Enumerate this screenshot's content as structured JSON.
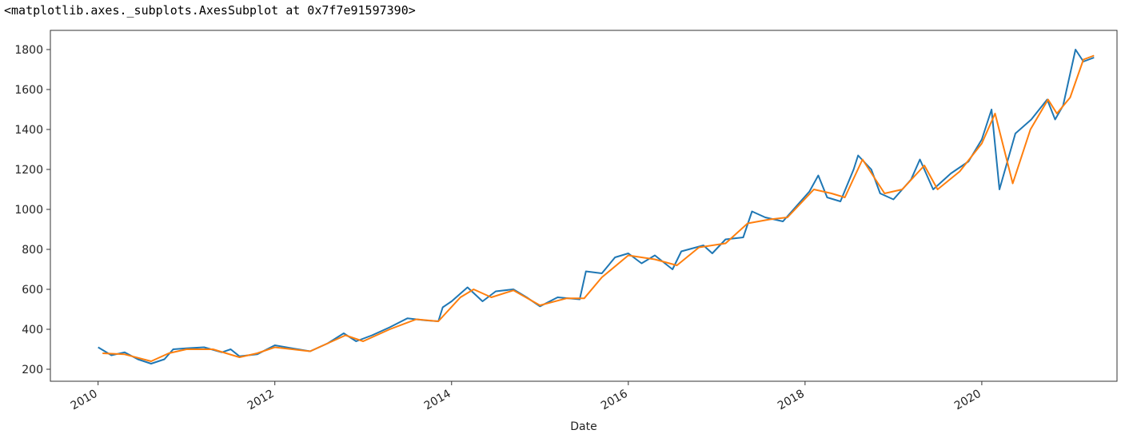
{
  "output_repr": "<matplotlib.axes._subplots.AxesSubplot at 0x7f7e91597390>",
  "chart_data": {
    "type": "line",
    "xlabel": "Date",
    "grid": false,
    "xlim": [
      2009.46,
      2021.53
    ],
    "ylim": [
      140,
      1896
    ],
    "xticks": [
      2010,
      2012,
      2014,
      2016,
      2018,
      2020
    ],
    "yticks": [
      200,
      400,
      600,
      800,
      1000,
      1200,
      1400,
      1600,
      1800
    ],
    "series": [
      {
        "color": "#1f77b4",
        "x": [
          2010.0,
          2010.15,
          2010.3,
          2010.45,
          2010.6,
          2010.75,
          2010.85,
          2011.0,
          2011.2,
          2011.4,
          2011.5,
          2011.6,
          2011.8,
          2012.0,
          2012.2,
          2012.4,
          2012.6,
          2012.78,
          2012.92,
          2013.1,
          2013.3,
          2013.5,
          2013.7,
          2013.85,
          2013.9,
          2014.0,
          2014.18,
          2014.35,
          2014.5,
          2014.7,
          2014.85,
          2015.0,
          2015.2,
          2015.45,
          2015.52,
          2015.7,
          2015.85,
          2016.0,
          2016.15,
          2016.3,
          2016.5,
          2016.6,
          2016.85,
          2016.95,
          2017.1,
          2017.3,
          2017.4,
          2017.55,
          2017.75,
          2017.95,
          2018.05,
          2018.15,
          2018.25,
          2018.4,
          2018.55,
          2018.6,
          2018.75,
          2018.85,
          2019.0,
          2019.2,
          2019.3,
          2019.45,
          2019.65,
          2019.85,
          2020.0,
          2020.11,
          2020.2,
          2020.38,
          2020.56,
          2020.65,
          2020.74,
          2020.83,
          2020.92,
          2021.06,
          2021.15,
          2021.27
        ],
        "values": [
          310,
          270,
          285,
          250,
          228,
          250,
          300,
          305,
          310,
          285,
          300,
          265,
          275,
          320,
          305,
          290,
          330,
          380,
          340,
          370,
          410,
          455,
          445,
          440,
          510,
          540,
          610,
          540,
          590,
          600,
          560,
          515,
          560,
          550,
          690,
          680,
          760,
          780,
          730,
          770,
          700,
          790,
          820,
          780,
          850,
          860,
          990,
          960,
          940,
          1040,
          1090,
          1170,
          1060,
          1040,
          1200,
          1270,
          1200,
          1080,
          1050,
          1150,
          1250,
          1100,
          1180,
          1240,
          1350,
          1500,
          1100,
          1380,
          1450,
          1500,
          1550,
          1450,
          1520,
          1800,
          1740,
          1760
        ]
      },
      {
        "color": "#ff7f0e",
        "x": [
          2010.05,
          2010.3,
          2010.6,
          2010.8,
          2011.0,
          2011.3,
          2011.6,
          2011.8,
          2012.0,
          2012.4,
          2012.8,
          2013.0,
          2013.3,
          2013.6,
          2013.85,
          2014.1,
          2014.25,
          2014.45,
          2014.7,
          2015.0,
          2015.3,
          2015.5,
          2015.7,
          2016.0,
          2016.3,
          2016.55,
          2016.8,
          2017.1,
          2017.35,
          2017.6,
          2017.8,
          2018.1,
          2018.3,
          2018.45,
          2018.65,
          2018.9,
          2019.1,
          2019.35,
          2019.5,
          2019.75,
          2020.0,
          2020.15,
          2020.35,
          2020.55,
          2020.75,
          2020.85,
          2021.0,
          2021.15,
          2021.27
        ],
        "values": [
          280,
          275,
          240,
          280,
          300,
          300,
          260,
          280,
          310,
          290,
          370,
          340,
          400,
          450,
          440,
          560,
          600,
          560,
          595,
          520,
          555,
          555,
          660,
          770,
          750,
          720,
          810,
          830,
          930,
          950,
          960,
          1100,
          1080,
          1060,
          1250,
          1080,
          1100,
          1220,
          1100,
          1190,
          1330,
          1480,
          1130,
          1400,
          1550,
          1480,
          1560,
          1750,
          1770
        ]
      }
    ]
  }
}
